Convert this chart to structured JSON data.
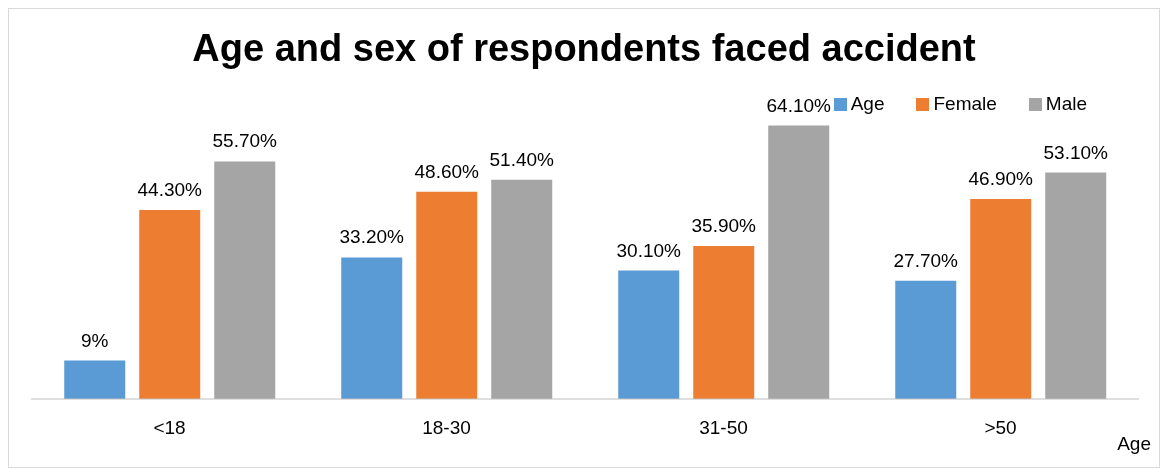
{
  "chart_data": {
    "type": "bar",
    "title": "Age and sex of respondents faced accident",
    "xlabel": "Age",
    "categories": [
      "<18",
      "18-30",
      "31-50",
      ">50"
    ],
    "series": [
      {
        "name": "Age",
        "color": "#5b9bd5",
        "values": [
          9,
          33.2,
          30.1,
          27.7
        ],
        "value_labels": [
          "9%",
          "33.20%",
          "30.10%",
          "27.70%"
        ]
      },
      {
        "name": "Female",
        "color": "#ed7d31",
        "values": [
          44.3,
          48.6,
          35.9,
          46.9
        ],
        "value_labels": [
          "44.30%",
          "48.60%",
          "35.90%",
          "46.90%"
        ]
      },
      {
        "name": "Male",
        "color": "#a5a5a5",
        "values": [
          55.7,
          51.4,
          64.1,
          53.1
        ],
        "value_labels": [
          "55.70%",
          "51.40%",
          "64.10%",
          "53.10%"
        ]
      }
    ],
    "legend": "top right",
    "grid": false
  }
}
